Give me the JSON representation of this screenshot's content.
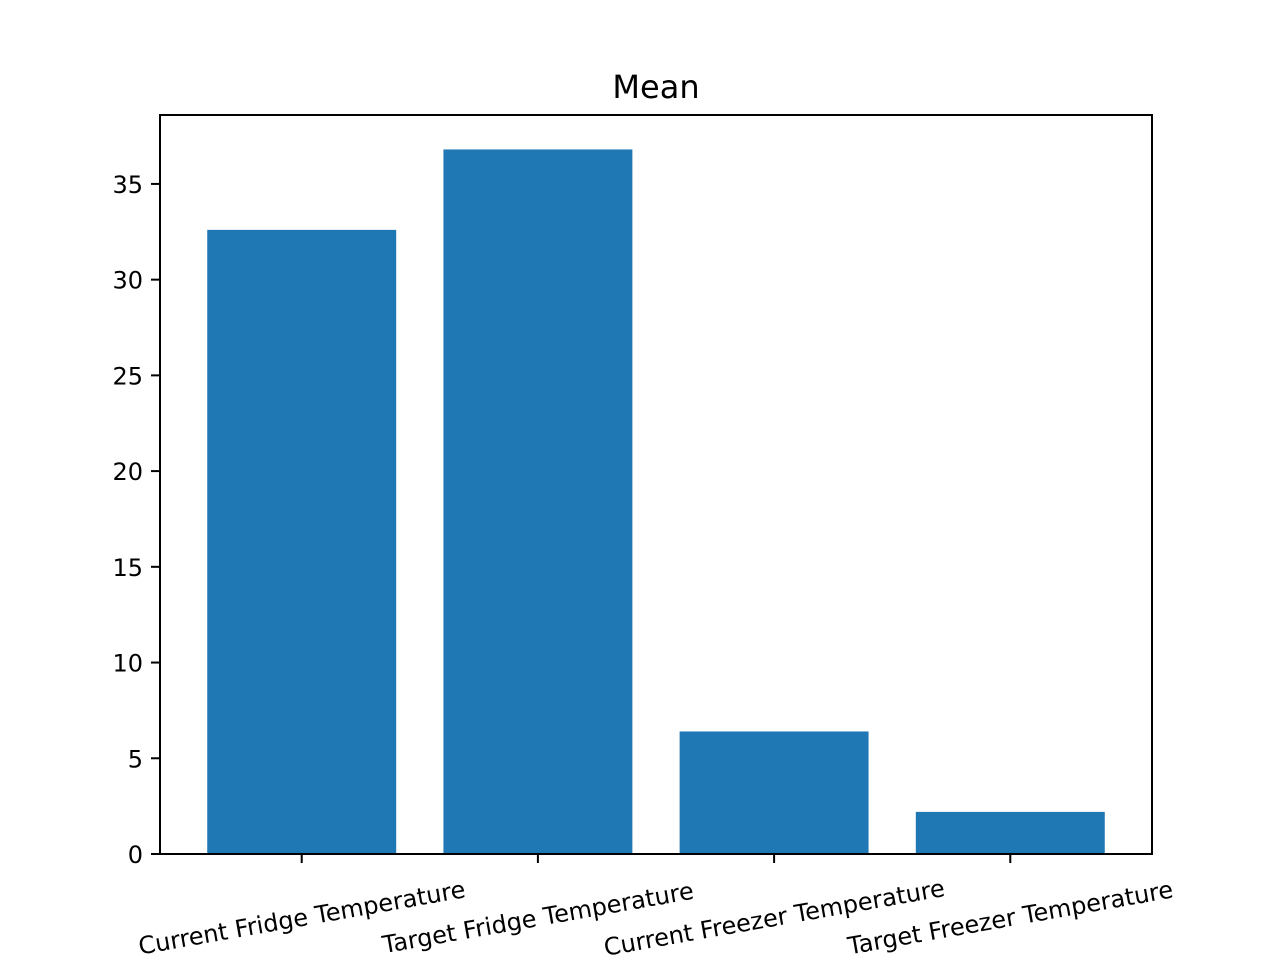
{
  "chart_data": {
    "type": "bar",
    "title": "Mean",
    "xlabel": "",
    "ylabel": "",
    "categories": [
      "Current Fridge Temperature",
      "Target Fridge Temperature",
      "Current Freezer Temperature",
      "Target Freezer Temperature"
    ],
    "values": [
      32.6,
      36.8,
      6.4,
      2.2
    ],
    "ylim": [
      0,
      38.6
    ],
    "yticks": [
      0,
      5,
      10,
      15,
      20,
      25,
      30,
      35
    ],
    "grid": false,
    "legend": "none",
    "bar_color": "#1f77b4"
  }
}
